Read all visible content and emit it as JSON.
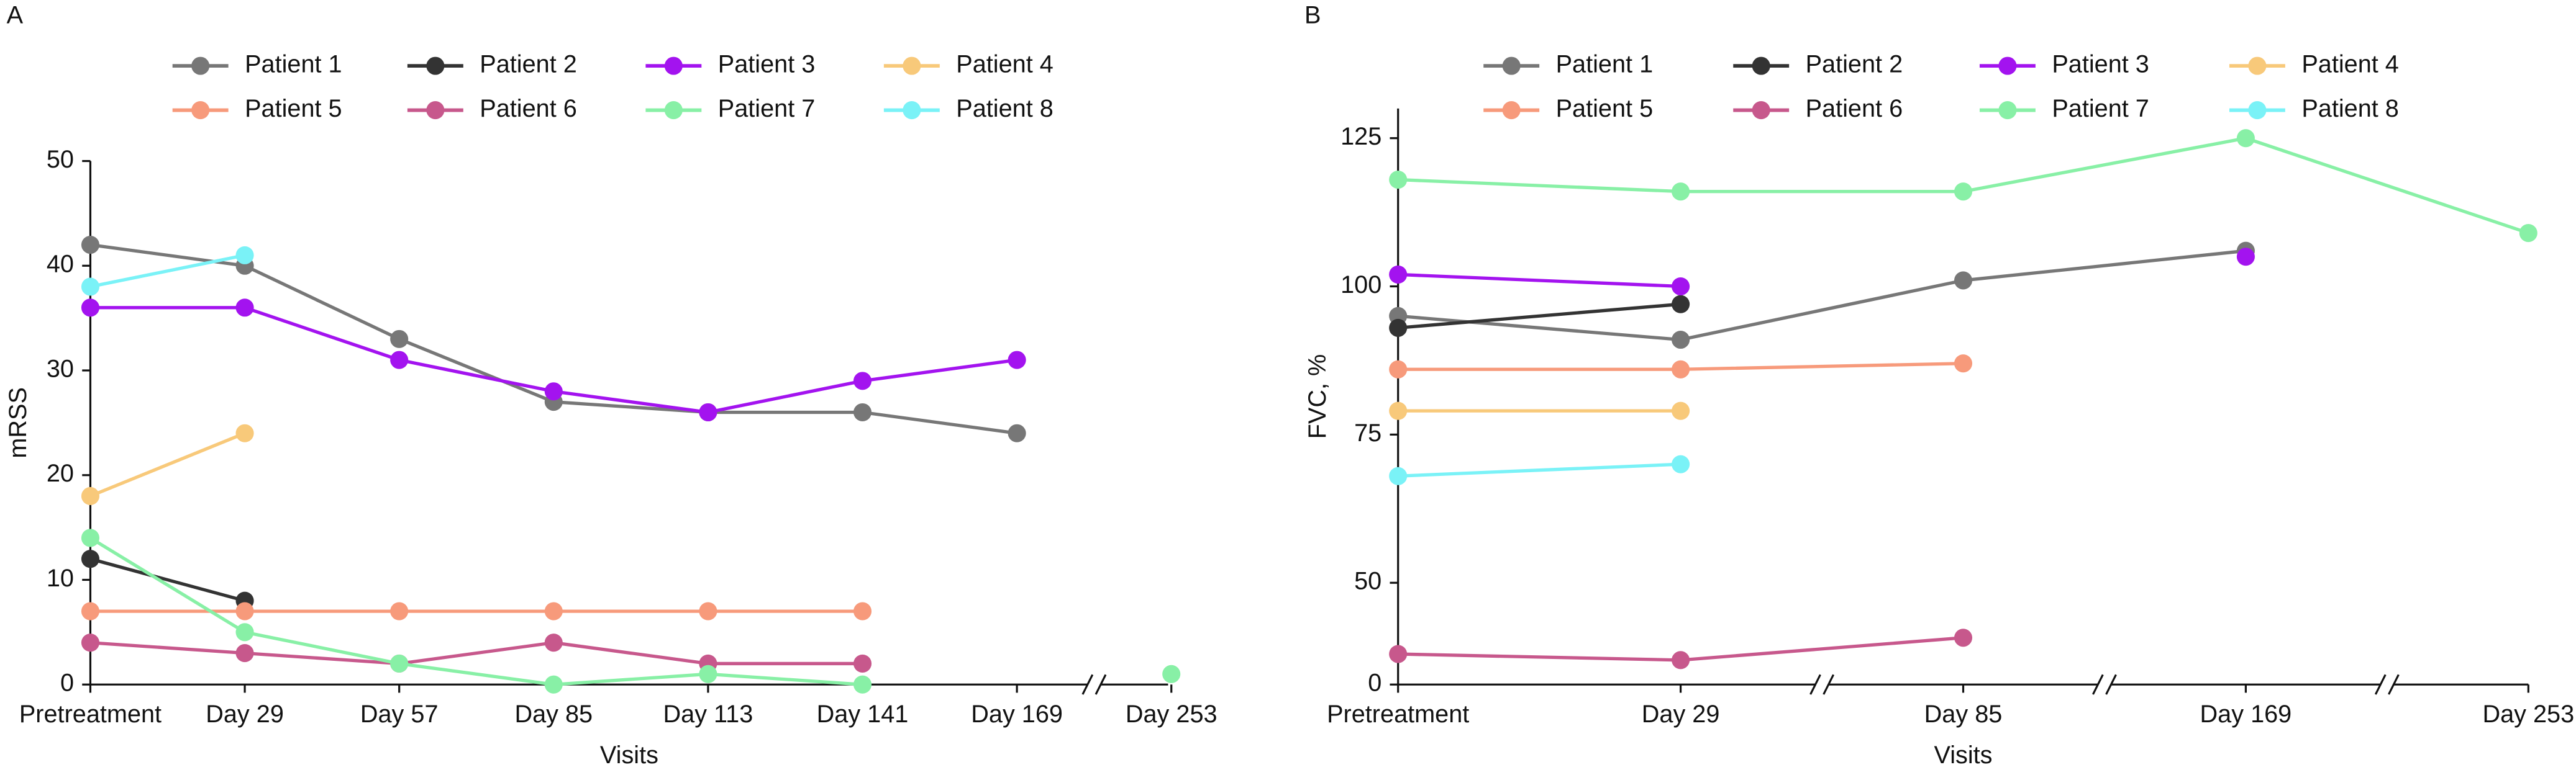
{
  "chart_data": [
    {
      "type": "line",
      "panel": "A",
      "y_label": "mRSS",
      "x_label": "Visits",
      "categories": [
        "Pretreatment",
        "Day 29",
        "Day 57",
        "Day 85",
        "Day 113",
        "Day 141",
        "Day 169",
        "Day 253"
      ],
      "x_breaks": [
        6
      ],
      "ylim": [
        0,
        50
      ],
      "yticks": [
        0,
        10,
        20,
        30,
        40,
        50
      ],
      "series": [
        {
          "name": "Patient 1",
          "color": "#777777",
          "values": [
            42,
            40,
            33,
            27,
            26,
            26,
            24,
            null
          ]
        },
        {
          "name": "Patient 2",
          "color": "#333333",
          "values": [
            12,
            8,
            null,
            null,
            null,
            null,
            null,
            null
          ]
        },
        {
          "name": "Patient 3",
          "color": "#a313ef",
          "values": [
            36,
            36,
            31,
            28,
            26,
            29,
            31,
            null
          ]
        },
        {
          "name": "Patient 4",
          "color": "#f8c97a",
          "values": [
            18,
            24,
            null,
            null,
            null,
            null,
            null,
            null
          ]
        },
        {
          "name": "Patient 5",
          "color": "#f79a7b",
          "values": [
            7,
            7,
            7,
            7,
            7,
            7,
            null,
            null
          ]
        },
        {
          "name": "Patient 6",
          "color": "#c7588c",
          "values": [
            4,
            3,
            2,
            4,
            2,
            2,
            null,
            null
          ]
        },
        {
          "name": "Patient 7",
          "color": "#88f0a6",
          "values": [
            14,
            5,
            2,
            0,
            1,
            0,
            null,
            1
          ]
        },
        {
          "name": "Patient 8",
          "color": "#7af2f7",
          "values": [
            38,
            41,
            null,
            null,
            null,
            null,
            null,
            null
          ]
        }
      ]
    },
    {
      "type": "line",
      "panel": "B",
      "y_label": "FVC, %",
      "x_label": "Visits",
      "categories": [
        "Pretreatment",
        "Day 29",
        "Day 85",
        "Day 169",
        "Day 253"
      ],
      "x_breaks": [
        1,
        2,
        3
      ],
      "ylim": [
        0,
        130
      ],
      "y_break": 50,
      "yticks": [
        0,
        50,
        75,
        100,
        125
      ],
      "series": [
        {
          "name": "Patient 1",
          "color": "#777777",
          "values": [
            95,
            91,
            101,
            106,
            null
          ]
        },
        {
          "name": "Patient 2",
          "color": "#333333",
          "values": [
            93,
            97,
            null,
            null,
            null
          ]
        },
        {
          "name": "Patient 3",
          "color": "#a313ef",
          "values": [
            102,
            100,
            null,
            105,
            null
          ]
        },
        {
          "name": "Patient 4",
          "color": "#f8c97a",
          "values": [
            79,
            79,
            null,
            null,
            null
          ]
        },
        {
          "name": "Patient 5",
          "color": "#f79a7b",
          "values": [
            86,
            86,
            87,
            null,
            null
          ]
        },
        {
          "name": "Patient 6",
          "color": "#c7588c",
          "values": [
            15,
            12,
            23,
            null,
            null
          ]
        },
        {
          "name": "Patient 7",
          "color": "#88f0a6",
          "values": [
            118,
            116,
            116,
            125,
            109
          ]
        },
        {
          "name": "Patient 8",
          "color": "#7af2f7",
          "values": [
            68,
            70,
            null,
            null,
            null
          ]
        }
      ]
    }
  ]
}
